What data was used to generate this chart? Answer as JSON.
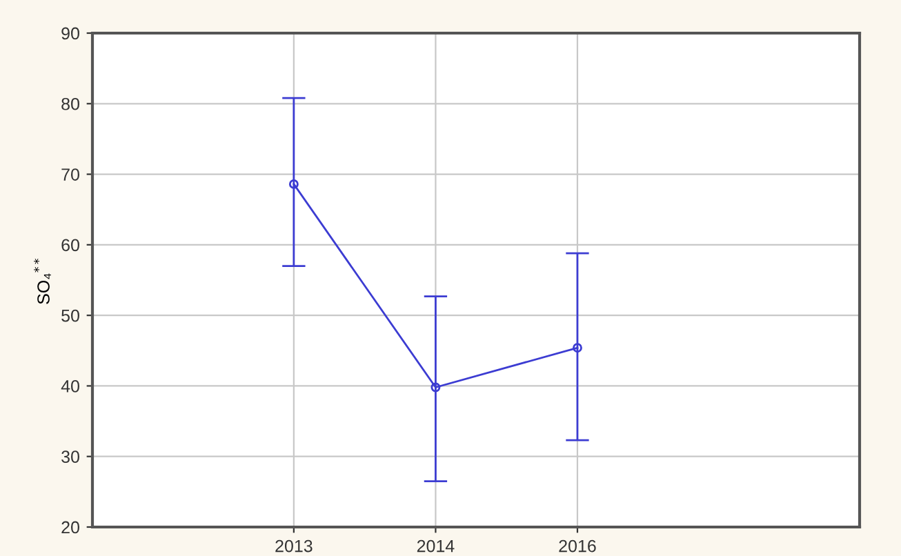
{
  "chart_data": {
    "type": "line",
    "ylabel": "SO₄$^{**}$",
    "categories": [
      "2013",
      "2014",
      "2016"
    ],
    "series": [
      {
        "color": "#3c3cd2",
        "values": [
          68.6,
          39.8,
          45.4
        ],
        "errors": [
          [
            57.0,
            80.8
          ],
          [
            26.5,
            52.7
          ],
          [
            32.3,
            58.8
          ]
        ]
      }
    ],
    "ylim": [
      20,
      90
    ],
    "yticks": [
      20,
      30,
      40,
      50,
      60,
      70,
      80,
      90
    ],
    "grid": true,
    "marker": "circle",
    "line_style": "solid",
    "legend": false
  }
}
